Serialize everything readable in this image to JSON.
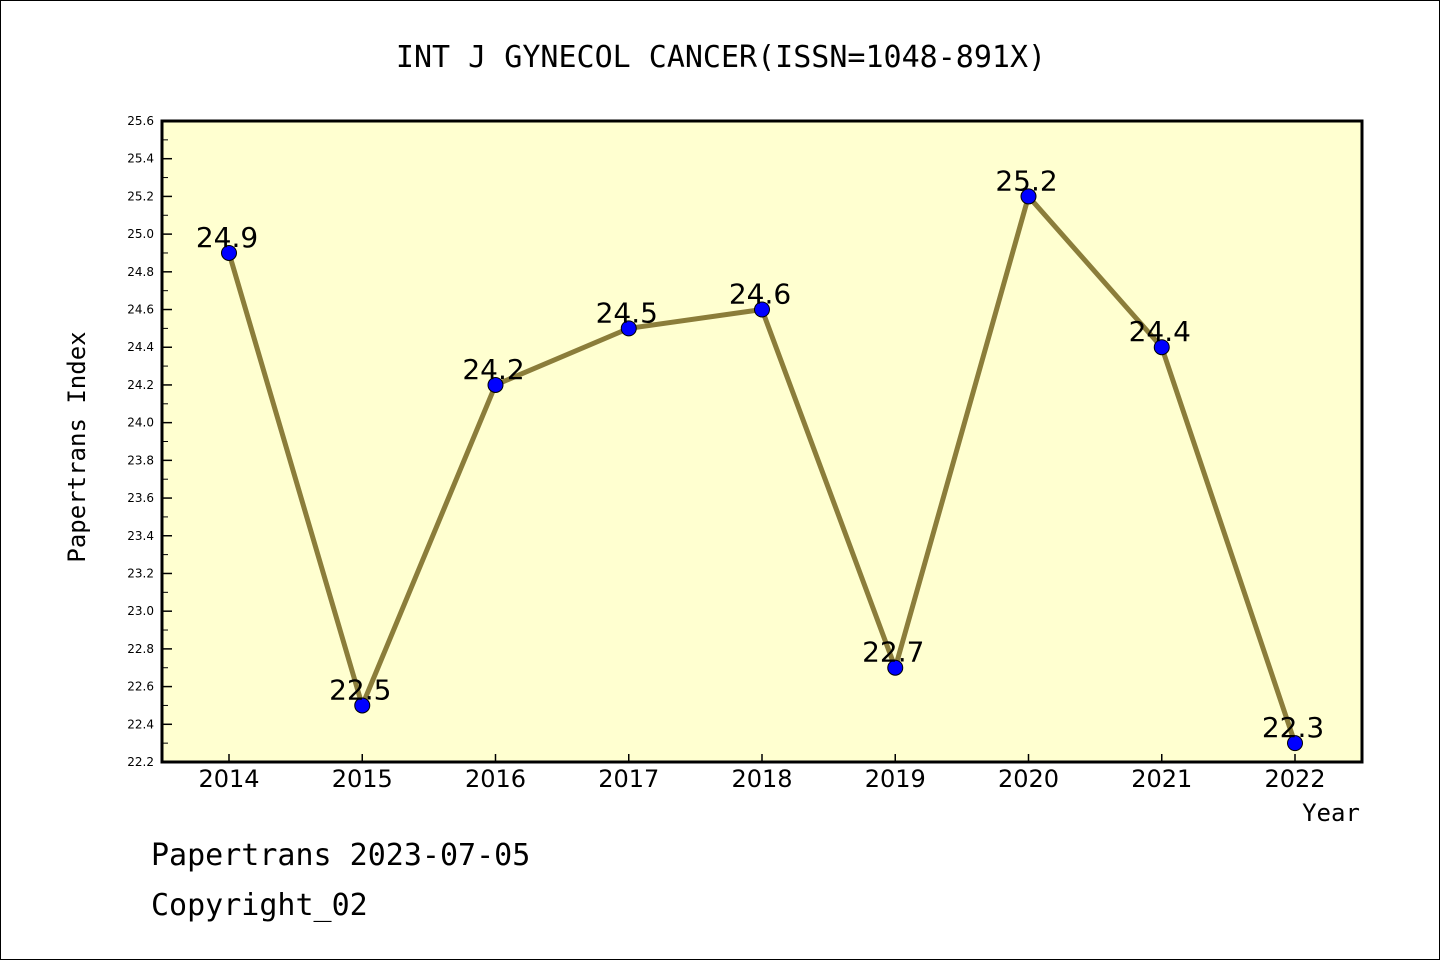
{
  "chart_data": {
    "type": "line",
    "title": "INT J GYNECOL CANCER(ISSN=1048-891X)",
    "xlabel": "Year",
    "ylabel": "Papertrans Index",
    "categories": [
      "2014",
      "2015",
      "2016",
      "2017",
      "2018",
      "2019",
      "2020",
      "2021",
      "2022"
    ],
    "series": [
      {
        "values": [
          24.9,
          22.5,
          24.2,
          24.5,
          24.6,
          22.7,
          25.2,
          24.4,
          22.3
        ]
      }
    ],
    "data_labels": [
      "24.9",
      "22.5",
      "24.2",
      "24.5",
      "24.6",
      "22.7",
      "25.2",
      "24.4",
      "22.3"
    ],
    "ylim": [
      22.2,
      25.6
    ],
    "yticks": [
      "22.2",
      "22.4",
      "22.6",
      "22.8",
      "23.0",
      "23.2",
      "23.4",
      "23.6",
      "23.8",
      "24.0",
      "24.2",
      "24.4",
      "24.6",
      "24.8",
      "25.0",
      "25.2",
      "25.4",
      "25.6"
    ],
    "grid": false,
    "colors": {
      "plot_background": "#ffffd0",
      "line": "#8b7d3a",
      "marker": "#0000ff"
    }
  },
  "footer": {
    "line1": "Papertrans 2023-07-05",
    "line2": "Copyright_02"
  }
}
